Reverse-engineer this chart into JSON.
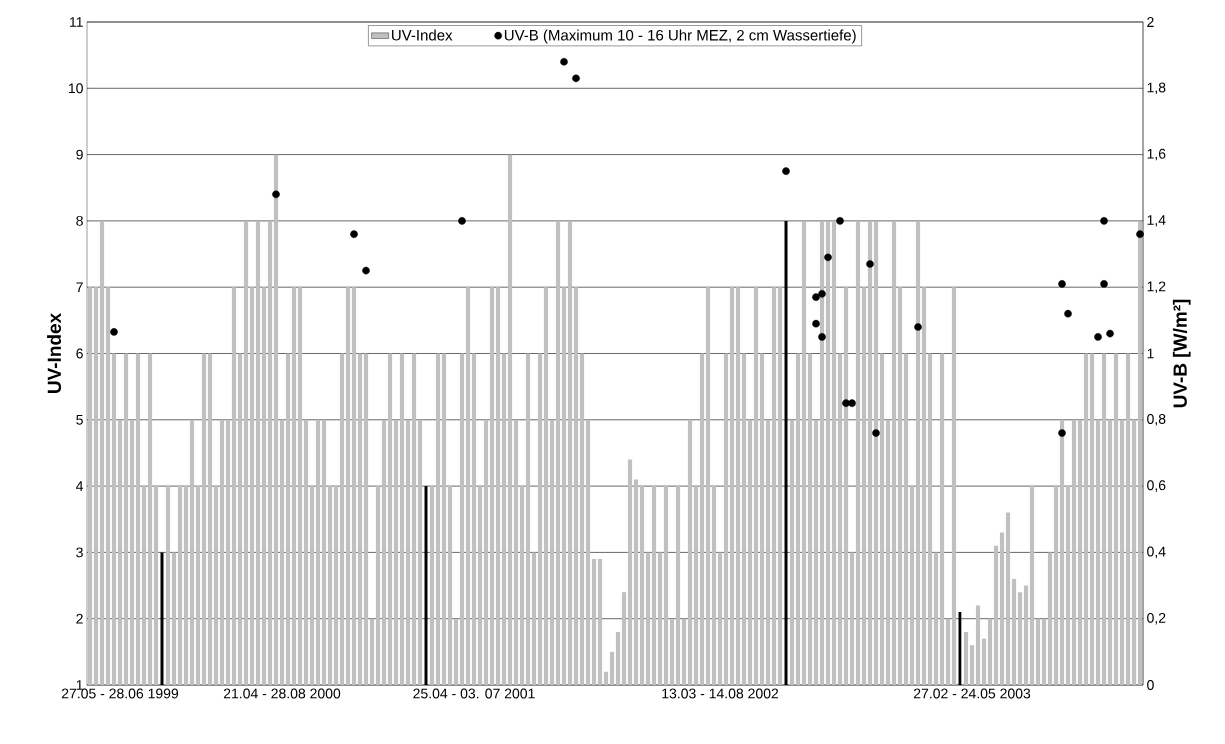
{
  "chart_data": {
    "type": "bar",
    "ylabel": "UV-Index",
    "y2label": "UV-B [W/m²]",
    "grid": "y",
    "legend": "top",
    "marker": "circle",
    "categories": [
      null,
      null,
      null,
      null,
      null,
      "27.05 - 28.06 1999",
      null,
      null,
      null,
      null,
      null,
      null,
      null,
      null,
      null,
      null,
      null,
      null,
      null,
      null,
      null,
      null,
      null,
      null,
      null,
      null,
      null,
      null,
      null,
      null,
      null,
      null,
      "21.04 - 28.08 2000",
      null,
      null,
      null,
      null,
      null,
      null,
      null,
      null,
      null,
      null,
      null,
      null,
      null,
      null,
      null,
      null,
      null,
      null,
      null,
      null,
      null,
      null,
      null,
      null,
      null,
      null,
      null,
      null,
      null,
      null,
      null,
      "25.04 - 03. 07 2001",
      null,
      null,
      null,
      null,
      null,
      null,
      null,
      null,
      null,
      null,
      null,
      null,
      null,
      null,
      null,
      null,
      null,
      null,
      null,
      null,
      null,
      null,
      null,
      null,
      null,
      null,
      null,
      null,
      null,
      null,
      null,
      null,
      null,
      null,
      null,
      null,
      null,
      null,
      null,
      null,
      "13.03 - 14.08 2002",
      null,
      null,
      null,
      null,
      null,
      null,
      null,
      null,
      null,
      null,
      null,
      null,
      null,
      null,
      null,
      null,
      null,
      null,
      null,
      null,
      null,
      null,
      null,
      null,
      null,
      null,
      null,
      null,
      null,
      null,
      null,
      null,
      null,
      null,
      null,
      null,
      null,
      null,
      null,
      null,
      null,
      "27.02 - 24.05 2003",
      null,
      null,
      null,
      null,
      null,
      null,
      null,
      null,
      null,
      null,
      null,
      null,
      null,
      null,
      null,
      null,
      null,
      null,
      null,
      null,
      null,
      null,
      null,
      null,
      null,
      null,
      null,
      null
    ],
    "ylim": [
      1,
      11
    ],
    "yticks": [
      1,
      2,
      3,
      4,
      5,
      6,
      7,
      8,
      9,
      10,
      11
    ],
    "y2lim": [
      0,
      2
    ],
    "y2ticks": [
      0,
      {
        "value": 0.2,
        "label": "0,2"
      },
      {
        "value": 0.4,
        "label": "0,4"
      },
      {
        "value": 0.6,
        "label": "0,6"
      },
      {
        "value": 0.8,
        "label": "0,8"
      },
      1,
      {
        "value": 1.2,
        "label": "1,2"
      },
      {
        "value": 1.4,
        "label": "1,4"
      },
      {
        "value": 1.6,
        "label": "1,6"
      },
      {
        "value": 1.8,
        "label": "1,8"
      },
      2
    ],
    "series": [
      {
        "name": "UV-Index",
        "color": "#c0c0c0",
        "values": [
          7,
          7,
          8,
          7,
          6,
          5,
          6,
          5,
          6,
          4,
          6,
          4,
          null,
          4,
          3,
          4,
          4,
          5,
          4,
          6,
          6,
          4,
          5,
          5,
          7,
          6,
          8,
          7,
          8,
          7,
          8,
          9,
          5,
          6,
          7,
          7,
          5,
          4,
          5,
          5,
          4,
          4,
          6,
          7,
          7,
          6,
          6,
          2,
          4,
          5,
          6,
          5,
          6,
          5,
          6,
          5,
          null,
          4,
          6,
          6,
          4,
          2,
          6,
          7,
          6,
          4,
          5,
          7,
          7,
          6,
          9,
          5,
          4,
          6,
          3,
          6,
          7,
          5,
          8,
          7,
          8,
          7,
          6,
          5,
          2.9,
          2.9,
          1.2,
          1.5,
          1.8,
          2.4,
          4.4,
          4.1,
          4,
          3,
          4,
          3,
          4,
          2,
          4,
          2,
          5,
          4,
          6,
          7,
          4,
          3,
          6,
          7,
          7,
          6,
          5,
          7,
          6,
          5,
          7,
          7,
          null,
          5,
          6,
          8,
          6,
          5,
          8,
          8,
          8,
          6,
          7,
          3,
          8,
          7,
          8,
          8,
          6,
          5,
          8,
          7,
          6,
          4,
          8,
          7,
          6,
          3,
          6,
          2,
          7,
          null,
          1.8,
          1.6,
          2.2,
          1.7,
          2,
          3.1,
          3.3,
          3.6,
          2.6,
          2.4,
          2.5,
          4,
          2,
          2,
          3,
          4,
          5,
          4,
          5,
          5,
          6,
          6,
          5,
          6,
          5,
          6,
          5,
          6,
          5,
          8
        ]
      },
      {
        "color": "#000000",
        "values": [
          null,
          null,
          null,
          null,
          null,
          null,
          null,
          null,
          null,
          null,
          null,
          null,
          3,
          null,
          null,
          null,
          null,
          null,
          null,
          null,
          null,
          null,
          null,
          null,
          null,
          null,
          null,
          null,
          null,
          null,
          null,
          null,
          null,
          null,
          null,
          null,
          null,
          null,
          null,
          null,
          null,
          null,
          null,
          null,
          null,
          null,
          null,
          null,
          null,
          null,
          null,
          null,
          null,
          null,
          null,
          null,
          4,
          null,
          null,
          null,
          null,
          null,
          null,
          null,
          null,
          null,
          null,
          null,
          null,
          null,
          null,
          null,
          null,
          null,
          null,
          null,
          null,
          null,
          null,
          null,
          null,
          null,
          null,
          null,
          null,
          null,
          null,
          null,
          null,
          null,
          null,
          null,
          null,
          null,
          null,
          null,
          null,
          null,
          null,
          null,
          null,
          null,
          null,
          null,
          null,
          null,
          null,
          null,
          null,
          null,
          null,
          null,
          null,
          null,
          null,
          null,
          8,
          null,
          null,
          null,
          null,
          null,
          null,
          null,
          null,
          null,
          null,
          null,
          null,
          null,
          null,
          null,
          null,
          null,
          null,
          null,
          null,
          null,
          null,
          null,
          null,
          null,
          null,
          null,
          null,
          2.1,
          null,
          null,
          null,
          null,
          null,
          null,
          null,
          null,
          null,
          null,
          null,
          null,
          null,
          null,
          null,
          null,
          null,
          null,
          null,
          null,
          null,
          null,
          null,
          null,
          null,
          null,
          null,
          null,
          null,
          null
        ]
      },
      {
        "name": "UV-B (Maximum 10 - 16 Uhr MEZ, 2 cm Wassertiefe)",
        "type": "scatter",
        "axis": "y2",
        "color": "#000000",
        "values": [
          null,
          null,
          null,
          null,
          1.065,
          null,
          null,
          null,
          null,
          null,
          null,
          null,
          null,
          null,
          null,
          null,
          null,
          null,
          null,
          null,
          null,
          null,
          null,
          null,
          null,
          null,
          null,
          null,
          null,
          null,
          null,
          1.48,
          null,
          null,
          null,
          null,
          null,
          null,
          null,
          null,
          null,
          null,
          null,
          null,
          1.36,
          null,
          1.25,
          null,
          null,
          null,
          null,
          null,
          null,
          null,
          null,
          null,
          null,
          null,
          null,
          null,
          null,
          null,
          1.4,
          null,
          null,
          null,
          null,
          null,
          null,
          null,
          null,
          null,
          null,
          null,
          null,
          null,
          null,
          null,
          null,
          1.88,
          null,
          1.83,
          null,
          null,
          null,
          null,
          null,
          null,
          null,
          null,
          null,
          null,
          null,
          null,
          null,
          null,
          null,
          null,
          null,
          null,
          null,
          null,
          null,
          null,
          null,
          null,
          null,
          null,
          null,
          null,
          null,
          null,
          null,
          null,
          null,
          null,
          1.55,
          null,
          null,
          null,
          null,
          1.17,
          1.18,
          1.29,
          null,
          1.4,
          0.85,
          0.85,
          null,
          null,
          1.27,
          null,
          null,
          null,
          null,
          null,
          null,
          null,
          1.08,
          null,
          null,
          null,
          null,
          null,
          null,
          null,
          null,
          null,
          null,
          null,
          null,
          null,
          null,
          null,
          null,
          null,
          null,
          null,
          null,
          null,
          null,
          null,
          1.21,
          1.12,
          null,
          null,
          null,
          null,
          1.05,
          1.4,
          null,
          null,
          null,
          null,
          null,
          1.36
        ]
      },
      {
        "type": "scatter",
        "axis": "y2",
        "color": "#000000",
        "values": [
          null,
          null,
          null,
          null,
          null,
          null,
          null,
          null,
          null,
          null,
          null,
          null,
          null,
          null,
          null,
          null,
          null,
          null,
          null,
          null,
          null,
          null,
          null,
          null,
          null,
          null,
          null,
          null,
          null,
          null,
          null,
          null,
          null,
          null,
          null,
          null,
          null,
          null,
          null,
          null,
          null,
          null,
          null,
          null,
          null,
          null,
          null,
          null,
          null,
          null,
          null,
          null,
          null,
          null,
          null,
          null,
          null,
          null,
          null,
          null,
          null,
          null,
          null,
          null,
          null,
          null,
          null,
          null,
          null,
          null,
          null,
          null,
          null,
          null,
          null,
          null,
          null,
          null,
          null,
          null,
          null,
          null,
          null,
          null,
          null,
          null,
          null,
          null,
          null,
          null,
          null,
          null,
          null,
          null,
          null,
          null,
          null,
          null,
          null,
          null,
          null,
          null,
          null,
          null,
          null,
          null,
          null,
          null,
          null,
          null,
          null,
          null,
          null,
          null,
          null,
          null,
          null,
          null,
          null,
          null,
          null,
          1.09,
          1.05,
          null,
          null,
          null,
          null,
          null,
          null,
          null,
          null,
          0.76,
          null,
          null,
          null,
          null,
          null,
          null,
          null,
          null,
          null,
          null,
          null,
          null,
          null,
          null,
          null,
          null,
          null,
          null,
          null,
          null,
          null,
          null,
          null,
          null,
          null,
          null,
          null,
          null,
          null,
          null,
          0.76,
          null,
          null,
          null,
          null,
          null,
          null,
          1.21,
          1.06,
          null,
          null,
          null,
          null,
          null
        ]
      }
    ]
  }
}
